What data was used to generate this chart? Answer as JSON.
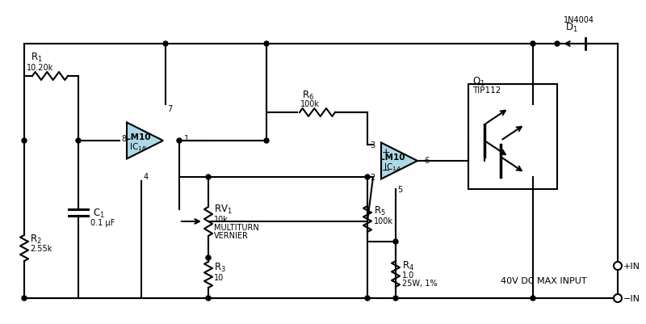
{
  "bg_color": "#ffffff",
  "line_color": "#000000",
  "op_amp_fill": "#add8e6",
  "fig_width": 8.0,
  "fig_height": 4.02,
  "dpi": 100,
  "label_40v": "40V DC MAX INPUT",
  "label_plus_in": "+IN",
  "label_minus_in": "-IN"
}
